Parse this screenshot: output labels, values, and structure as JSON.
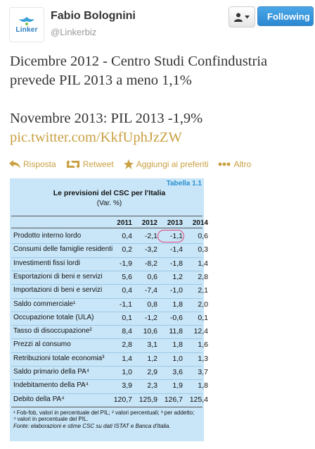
{
  "profile": {
    "avatar_text": "Linker",
    "name": "Fabio Bolognini",
    "handle": "@Linkerbiz"
  },
  "buttons": {
    "following": "Following"
  },
  "tweet": {
    "line1": "Dicembre 2012 - Centro Studi Confindustria",
    "line2": "prevede PIL 2013 a meno 1,1%",
    "line3": "Novembre 2013: PIL 2013 -1,9%",
    "link": "pic.twitter.com/KkfUphJzZW"
  },
  "actions": [
    {
      "label": "Risposta",
      "icon": "reply-icon"
    },
    {
      "label": "Retweet",
      "icon": "retweet-icon"
    },
    {
      "label": "Aggiungi ai preferiti",
      "icon": "star-icon"
    },
    {
      "label": "Altro",
      "icon": "more-icon"
    }
  ],
  "table_image": {
    "tab": "Tabella 1.1",
    "title": "Le previsioni del CSC per l'Italia",
    "subtitle": "(Var. %)",
    "years": [
      "2011",
      "2012",
      "2013",
      "2014"
    ],
    "rows": [
      {
        "label": "Prodotto interno lordo",
        "values": [
          "0,4",
          "-2,1",
          "-1,1",
          "0,6"
        ]
      },
      {
        "label": "Consumi delle famiglie residenti",
        "values": [
          "0,2",
          "-3,2",
          "-1,4",
          "0,3"
        ]
      },
      {
        "label": "Investimenti fissi lordi",
        "values": [
          "-1,9",
          "-8,2",
          "-1,8",
          "1,4"
        ]
      },
      {
        "label": "Esportazioni di beni e servizi",
        "values": [
          "5,6",
          "0,6",
          "1,2",
          "2,8"
        ]
      },
      {
        "label": "Importazioni di beni e servizi",
        "values": [
          "0,4",
          "-7,4",
          "-1,0",
          "2,1"
        ]
      },
      {
        "label": "Saldo commerciale¹",
        "values": [
          "-1,1",
          "0,8",
          "1,8",
          "2,0"
        ]
      },
      {
        "label": "Occupazione totale (ULA)",
        "values": [
          "0,1",
          "-1,2",
          "-0,6",
          "0,1"
        ]
      },
      {
        "label": "Tasso di disoccupazione²",
        "values": [
          "8,4",
          "10,6",
          "11,8",
          "12,4"
        ]
      },
      {
        "label": "Prezzi al consumo",
        "values": [
          "2,8",
          "3,1",
          "1,8",
          "1,6"
        ]
      },
      {
        "label": "Retribuzioni totale economia³",
        "values": [
          "1,4",
          "1,2",
          "1,0",
          "1,3"
        ]
      },
      {
        "label": "Saldo primario della PA⁴",
        "values": [
          "1,0",
          "2,9",
          "3,6",
          "3,7"
        ]
      },
      {
        "label": "Indebitamento della PA⁴",
        "values": [
          "3,9",
          "2,3",
          "1,9",
          "1,8"
        ]
      },
      {
        "label": "Debito della PA⁴",
        "values": [
          "120,7",
          "125,9",
          "126,7",
          "125,4"
        ]
      }
    ],
    "footnote1": "¹ Fob-fob, valori in percentuale del PIL; ² valori percentuali; ³ per addetto;",
    "footnote2": "⁴ valori in percentuale del PIL.",
    "source": "Fonte: elaborazioni e stime CSC su dati ISTAT e Banca d'Italia."
  }
}
